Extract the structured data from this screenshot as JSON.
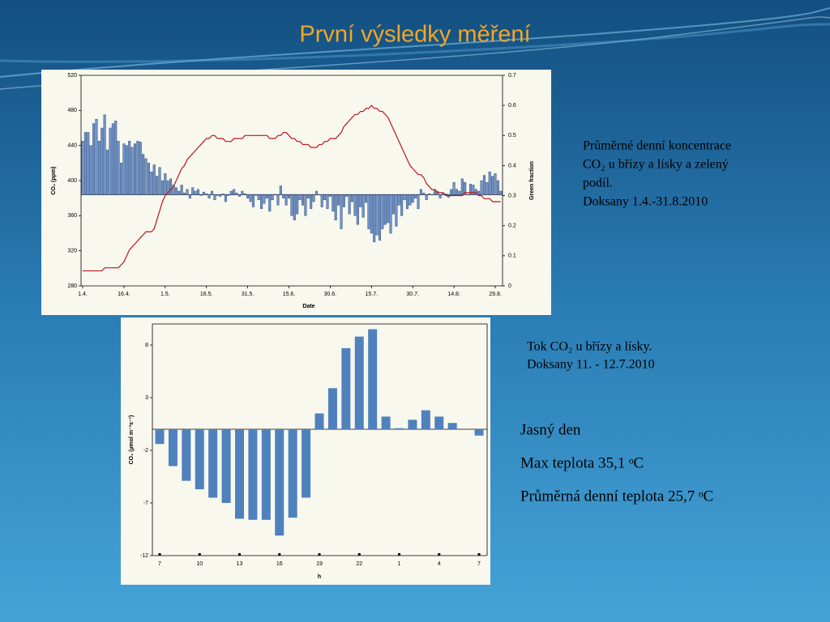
{
  "title": "První výsledky měření",
  "chart_data": [
    {
      "type": "bar_line",
      "categories": [
        "1.4.",
        null,
        null,
        null,
        null,
        null,
        null,
        null,
        null,
        null,
        null,
        null,
        null,
        null,
        null,
        "16.4.",
        null,
        null,
        null,
        null,
        null,
        null,
        null,
        null,
        null,
        null,
        null,
        null,
        null,
        null,
        "1.5.",
        null,
        null,
        null,
        null,
        null,
        null,
        null,
        null,
        null,
        null,
        null,
        null,
        null,
        null,
        "16.5.",
        null,
        null,
        null,
        null,
        null,
        null,
        null,
        null,
        null,
        null,
        null,
        null,
        null,
        null,
        "31.5.",
        null,
        null,
        null,
        null,
        null,
        null,
        null,
        null,
        null,
        null,
        null,
        null,
        null,
        null,
        "15.6.",
        null,
        null,
        null,
        null,
        null,
        null,
        null,
        null,
        null,
        null,
        null,
        null,
        null,
        null,
        "30.6.",
        null,
        null,
        null,
        null,
        null,
        null,
        null,
        null,
        null,
        null,
        null,
        null,
        null,
        null,
        "15.7.",
        null,
        null,
        null,
        null,
        null,
        null,
        null,
        null,
        null,
        null,
        null,
        null,
        null,
        null,
        "30.7.",
        null,
        null,
        null,
        null,
        null,
        null,
        null,
        null,
        null,
        null,
        null,
        null,
        null,
        null,
        "14.8.",
        null,
        null,
        null,
        null,
        null,
        null,
        null,
        null,
        null,
        null,
        null,
        null,
        null,
        null,
        "29.8.",
        null,
        null
      ],
      "series": [
        {
          "kind": "bar",
          "color": "#6f93c8",
          "values": [
            445,
            455,
            455,
            440,
            465,
            470,
            445,
            460,
            475,
            435,
            460,
            465,
            468,
            445,
            420,
            442,
            440,
            445,
            438,
            442,
            445,
            444,
            430,
            425,
            420,
            410,
            418,
            405,
            415,
            400,
            408,
            400,
            402,
            395,
            392,
            388,
            395,
            386,
            390,
            380,
            392,
            388,
            390,
            383,
            387,
            385,
            380,
            388,
            378,
            383,
            382,
            385,
            376,
            383,
            388,
            390,
            386,
            382,
            388,
            385,
            380,
            376,
            370,
            383,
            378,
            368,
            374,
            380,
            365,
            378,
            384,
            372,
            394,
            380,
            372,
            380,
            360,
            355,
            362,
            378,
            372,
            360,
            380,
            368,
            376,
            388,
            384,
            370,
            378,
            368,
            382,
            365,
            355,
            372,
            345,
            370,
            382,
            362,
            376,
            360,
            350,
            370,
            358,
            375,
            345,
            340,
            330,
            338,
            332,
            345,
            350,
            352,
            340,
            362,
            348,
            372,
            360,
            378,
            368,
            372,
            375,
            380,
            368,
            390,
            386,
            378,
            385,
            384,
            390,
            388,
            380,
            386,
            385,
            381,
            390,
            398,
            390,
            388,
            402,
            398,
            384,
            396,
            395,
            390,
            388,
            400,
            406,
            398,
            410,
            405,
            408,
            400,
            388
          ]
        },
        {
          "kind": "line",
          "axis": "y2",
          "color": "#c0141e",
          "values": [
            0.05,
            0.05,
            0.05,
            0.05,
            0.05,
            0.05,
            0.05,
            0.05,
            0.06,
            0.06,
            0.06,
            0.06,
            0.06,
            0.06,
            0.07,
            0.08,
            0.1,
            0.12,
            0.13,
            0.14,
            0.15,
            0.16,
            0.17,
            0.18,
            0.18,
            0.18,
            0.19,
            0.22,
            0.25,
            0.28,
            0.3,
            0.31,
            0.32,
            0.33,
            0.35,
            0.37,
            0.39,
            0.4,
            0.42,
            0.43,
            0.44,
            0.45,
            0.46,
            0.47,
            0.48,
            0.49,
            0.49,
            0.5,
            0.5,
            0.49,
            0.49,
            0.49,
            0.48,
            0.48,
            0.48,
            0.49,
            0.49,
            0.49,
            0.49,
            0.5,
            0.5,
            0.5,
            0.5,
            0.5,
            0.5,
            0.5,
            0.5,
            0.5,
            0.49,
            0.49,
            0.49,
            0.5,
            0.5,
            0.51,
            0.51,
            0.5,
            0.49,
            0.49,
            0.48,
            0.48,
            0.47,
            0.47,
            0.47,
            0.46,
            0.46,
            0.46,
            0.47,
            0.47,
            0.48,
            0.48,
            0.49,
            0.49,
            0.49,
            0.5,
            0.51,
            0.53,
            0.54,
            0.55,
            0.56,
            0.57,
            0.57,
            0.58,
            0.58,
            0.59,
            0.59,
            0.6,
            0.59,
            0.59,
            0.58,
            0.58,
            0.57,
            0.56,
            0.54,
            0.52,
            0.5,
            0.48,
            0.46,
            0.44,
            0.42,
            0.4,
            0.39,
            0.38,
            0.37,
            0.37,
            0.36,
            0.34,
            0.33,
            0.32,
            0.32,
            0.31,
            0.31,
            0.31,
            0.3,
            0.3,
            0.3,
            0.3,
            0.3,
            0.3,
            0.3,
            0.31,
            0.31,
            0.31,
            0.31,
            0.31,
            0.3,
            0.3,
            0.29,
            0.29,
            0.29,
            0.28,
            0.28,
            0.28,
            0.28
          ]
        }
      ],
      "bar_base": 384,
      "ylim": [
        280,
        520
      ],
      "yticks": [
        280,
        320,
        360,
        400,
        440,
        480,
        520
      ],
      "y2lim": [
        0,
        0.7
      ],
      "y2ticks": [
        0,
        0.1,
        0.2,
        0.3,
        0.4,
        0.5,
        0.6,
        0.7
      ],
      "ylabel": "CO₂ (ppm)",
      "y2label": "Green fraction",
      "xlabel": "Date"
    },
    {
      "type": "bar",
      "categories": [
        "7",
        null,
        null,
        "10",
        null,
        null,
        "13",
        null,
        null,
        "16",
        null,
        null,
        "19",
        null,
        null,
        "22",
        null,
        null,
        "1",
        null,
        null,
        "4",
        null,
        null,
        "7"
      ],
      "series": [
        {
          "kind": "bar",
          "color": "#4f81bd",
          "values": [
            -1.4,
            -3.5,
            -4.9,
            -5.7,
            -6.5,
            -7.0,
            -8.5,
            -8.6,
            -8.6,
            -10.1,
            -8.4,
            -6.5,
            1.5,
            3.9,
            7.7,
            8.8,
            9.5,
            1.2,
            0.1,
            0.9,
            1.8,
            1.2,
            0.6,
            0,
            -0.6
          ]
        }
      ],
      "bar_base": 0,
      "ylim": [
        -12,
        10
      ],
      "yticks": [
        8,
        3,
        -2,
        -7,
        -12
      ],
      "ylabel": "CO₂ (µmol m⁻²s⁻¹)",
      "xlabel": "h"
    }
  ],
  "captions": [
    {
      "lines": [
        "Průměrné denní koncentrace",
        "CO₂ u břízy a lísky a zelený",
        "podíl.",
        "Doksany 1.4.-31.8.2010"
      ]
    },
    {
      "lines": [
        "Tok CO₂ u břízy a lísky.",
        "Doksany 11. - 12.7.2010"
      ]
    }
  ],
  "notes": [
    "Jasný den",
    "Max teplota 35,1 ᵒC",
    "Průměrná denní teplota 25,7 ᵒC"
  ]
}
